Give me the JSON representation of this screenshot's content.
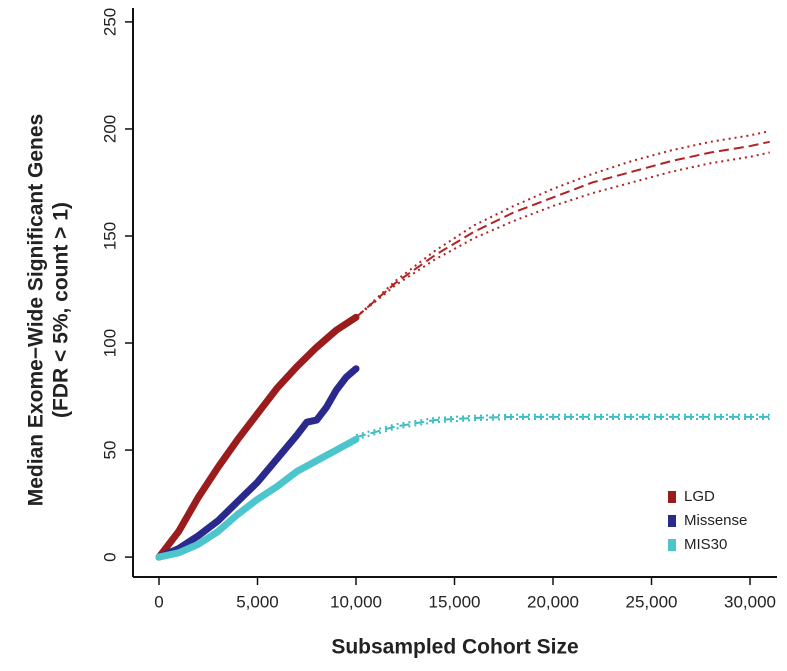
{
  "chart_data": {
    "type": "line",
    "x_label": "Subsampled Cohort Size",
    "y_label": [
      "Median Exome−Wide Significant Genes",
      "(FDR < 5%, count > 1)"
    ],
    "xlim": [
      -1320,
      31370
    ],
    "ylim": [
      -9.3,
      256.5
    ],
    "xticks": [
      0,
      {
        "value": 5000,
        "label": "5,000"
      },
      {
        "value": 10000,
        "label": "10,000"
      },
      {
        "value": 15000,
        "label": "15,000"
      },
      {
        "value": 20000,
        "label": "20,000"
      },
      {
        "value": 25000,
        "label": "25,000"
      },
      {
        "value": 30000,
        "label": "30,000"
      }
    ],
    "yticks": [
      0,
      50,
      100,
      150,
      200,
      250
    ],
    "legend": "bottom-right",
    "series": [
      {
        "name": "LGD",
        "color": "#9b1c1c",
        "x": [
          0,
          1000,
          2000,
          3000,
          4000,
          5000,
          6000,
          7000,
          8000,
          9000,
          10000
        ],
        "values": [
          0,
          12,
          28,
          42,
          55,
          67,
          79,
          89,
          98,
          106,
          112
        ]
      },
      {
        "name": "Missense",
        "color": "#2a2a8c",
        "x": [
          0,
          1000,
          2000,
          3000,
          4000,
          5000,
          6000,
          7000,
          7500,
          8000,
          8500,
          9000,
          9500,
          10000
        ],
        "values": [
          0,
          4,
          10,
          17,
          26,
          35,
          46,
          57,
          63,
          64,
          70,
          78,
          84,
          88
        ]
      },
      {
        "name": "MIS30",
        "color": "#4cc6cc",
        "x": [
          0,
          1000,
          2000,
          3000,
          4000,
          5000,
          6000,
          7000,
          8000,
          9000,
          10000
        ],
        "values": [
          0,
          2,
          6,
          12,
          20,
          27,
          33,
          40,
          45,
          50,
          55
        ]
      }
    ],
    "projections": [
      {
        "color": "#b22222",
        "style": "dashed",
        "x": [
          10000,
          12000,
          14000,
          16000,
          18000,
          20000,
          22000,
          24000,
          26000,
          28000,
          30000,
          31000
        ],
        "values": [
          112,
          128,
          141,
          152,
          161,
          168,
          175,
          180,
          185,
          189,
          192,
          194
        ]
      },
      {
        "color": "#b22222",
        "style": "dotted",
        "x": [
          10000,
          12000,
          14000,
          16000,
          18000,
          20000,
          22000,
          24000,
          26000,
          28000,
          30000,
          31000
        ],
        "values": [
          112,
          129,
          143,
          155,
          164,
          172,
          179,
          185,
          190,
          194,
          197,
          199
        ]
      },
      {
        "color": "#b22222",
        "style": "dotted",
        "x": [
          10000,
          12000,
          14000,
          16000,
          18000,
          20000,
          22000,
          24000,
          26000,
          28000,
          30000,
          31000
        ],
        "values": [
          112,
          127,
          139,
          149,
          157,
          164,
          170,
          175,
          180,
          184,
          187,
          189
        ]
      },
      {
        "color": "#3cbcc4",
        "style": "dashed",
        "x": [
          10000,
          12000,
          14000,
          16000,
          18000,
          20000,
          25000,
          31000
        ],
        "values": [
          56,
          61,
          64,
          65,
          65.5,
          65.5,
          65.5,
          65.5
        ]
      },
      {
        "color": "#3cbcc4",
        "style": "dotted",
        "x": [
          10000,
          12000,
          14000,
          16000,
          18000,
          20000,
          25000,
          31000
        ],
        "values": [
          57,
          62,
          65,
          66,
          66.5,
          66.5,
          66.5,
          66.5
        ]
      },
      {
        "color": "#3cbcc4",
        "style": "dotted",
        "x": [
          10000,
          12000,
          14000,
          16000,
          18000,
          20000,
          25000,
          31000
        ],
        "values": [
          55,
          60,
          63,
          64,
          64.5,
          64.5,
          64.5,
          64.5
        ]
      }
    ]
  }
}
